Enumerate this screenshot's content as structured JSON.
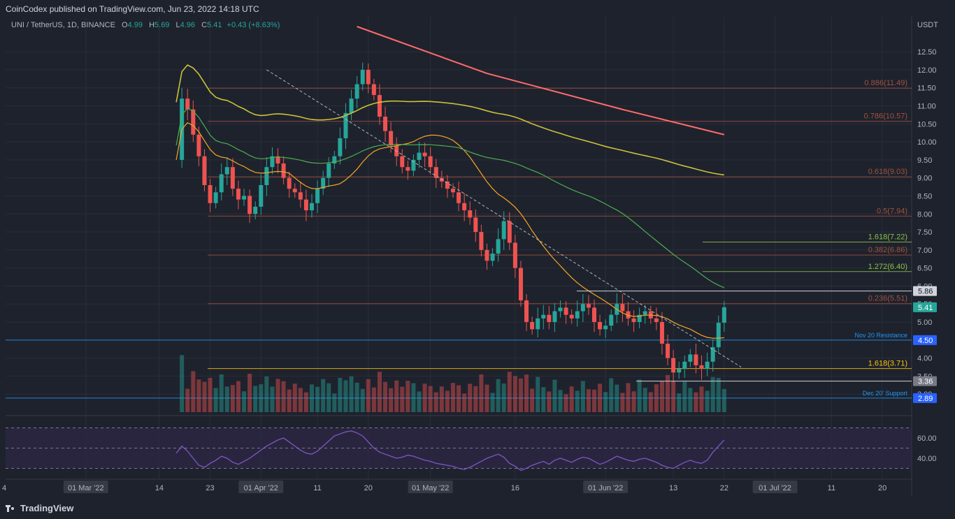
{
  "header": {
    "publisher_line": "CoinCodex published on TradingView.com, Jun 23, 2022 14:18 UTC",
    "symbol_line": "UNI / TetherUS, 1D, BINANCE",
    "ohlc": {
      "open": "4.99",
      "high": "5.69",
      "low": "4.96",
      "close": "5.41",
      "change": "+0.43 (+8.63%)"
    },
    "ohlc_labels": {
      "open": "O",
      "high": "H",
      "low": "L",
      "close": "C"
    }
  },
  "footer": {
    "brand": "TradingView"
  },
  "colors": {
    "background": "#1e222d",
    "grid": "#2a2e39",
    "up": "#26a69a",
    "down": "#ef5350",
    "fib": "#a0523d",
    "fib_ext": "#8bc34a",
    "support_blue": "#2196f3",
    "fib_level": "#ffc107",
    "ma_yellow": "#c9c23a",
    "ma_orange": "#f5a623",
    "ma_green": "#4caf50",
    "ma_red": "#ff6b6b",
    "rsi_line": "#7e57c2",
    "rsi_band": "#2e2747"
  },
  "chart_data": {
    "type": "candlestick",
    "currency": "USDT",
    "ylim": [
      2.5,
      13.2
    ],
    "y_ticks": [
      "12.50",
      "12.00",
      "11.50",
      "11.00",
      "10.50",
      "10.00",
      "9.50",
      "9.00",
      "8.50",
      "8.00",
      "7.50",
      "7.00",
      "6.50",
      "6.00",
      "5.50",
      "5.00",
      "4.00",
      "3.50",
      "3.00"
    ],
    "x_ticks": [
      "4",
      "01 Mar '22",
      "14",
      "23",
      "01 Apr '22",
      "11",
      "20",
      "01 May '22",
      "16",
      "01 Jun '22",
      "13",
      "22",
      "01 Jul '22",
      "11",
      "20"
    ],
    "x_tick_days": [
      -25,
      0,
      13,
      22,
      31,
      41,
      50,
      61,
      76,
      92,
      104,
      113,
      122,
      132,
      141
    ],
    "x_highlight": [
      "01 Mar '22",
      "01 Apr '22",
      "01 May '22",
      "01 Jun '22",
      "01 Jul '22"
    ],
    "date_axis_origin": "2022-03-01",
    "last_candle_day": 113,
    "candles": [
      [
        4.99,
        5.69,
        4.96,
        5.41
      ]
    ],
    "closes_series": [
      9.5,
      11.2,
      10.9,
      10.2,
      9.6,
      8.8,
      8.3,
      8.6,
      9.1,
      9.3,
      8.7,
      8.4,
      8.5,
      8.0,
      8.2,
      8.8,
      9.3,
      9.6,
      9.4,
      9.0,
      8.7,
      8.6,
      8.4,
      8.1,
      8.3,
      8.7,
      9.0,
      9.4,
      9.6,
      10.1,
      10.8,
      11.2,
      11.6,
      12.0,
      11.6,
      11.3,
      10.7,
      10.3,
      9.9,
      9.6,
      9.3,
      9.2,
      9.5,
      9.7,
      9.6,
      9.3,
      9.0,
      8.9,
      8.7,
      8.6,
      8.3,
      8.1,
      7.9,
      7.5,
      7.0,
      6.7,
      6.9,
      7.3,
      7.8,
      7.2,
      6.5,
      5.6,
      5.0,
      4.8,
      5.1,
      5.2,
      5.0,
      5.3,
      5.4,
      5.2,
      5.1,
      5.3,
      5.5,
      5.4,
      5.0,
      4.8,
      4.9,
      5.2,
      5.5,
      5.3,
      5.1,
      5.0,
      5.2,
      5.3,
      5.1,
      5.0,
      4.4,
      4.0,
      3.6,
      3.7,
      3.9,
      4.1,
      3.8,
      3.7,
      3.9,
      4.3,
      4.98,
      5.41
    ],
    "horizontal_levels": [
      {
        "label": "0.886(11.49)",
        "value": 11.49,
        "kind": "fib"
      },
      {
        "label": "0.786(10.57)",
        "value": 10.57,
        "kind": "fib"
      },
      {
        "label": "0.618(9.03)",
        "value": 9.03,
        "kind": "fib"
      },
      {
        "label": "0.5(7.94)",
        "value": 7.94,
        "kind": "fib"
      },
      {
        "label": "1.618(7.22)",
        "value": 7.22,
        "kind": "fib_ext"
      },
      {
        "label": "0.382(6.86)",
        "value": 6.86,
        "kind": "fib"
      },
      {
        "label": "1.272(6.40)",
        "value": 6.4,
        "kind": "fib_ext"
      },
      {
        "label": "0.236(5.51)",
        "value": 5.51,
        "kind": "fib"
      },
      {
        "label": "Nov 20 Resistance",
        "value": 4.5,
        "kind": "support_blue"
      },
      {
        "label": "1.618(3.71)",
        "value": 3.71,
        "kind": "fib_level"
      },
      {
        "label": "Dec 20' Support",
        "value": 2.89,
        "kind": "support_blue"
      }
    ],
    "price_tags": [
      {
        "label": "5.86",
        "value": 5.86,
        "style": "white"
      },
      {
        "label": "5.41",
        "value": 5.41,
        "style": "green"
      },
      {
        "label": "4.50",
        "value": 4.5,
        "style": "blue"
      },
      {
        "label": "3.36",
        "value": 3.36,
        "style": "grey"
      },
      {
        "label": "2.89",
        "value": 2.89,
        "style": "blue"
      }
    ],
    "rsi": {
      "ylim": [
        20,
        80
      ],
      "y_ticks": [
        "60.00",
        "40.00"
      ],
      "upper_band": 70,
      "mid_band": 50,
      "lower_band": 30,
      "values": [
        45,
        52,
        47,
        40,
        33,
        31,
        35,
        38,
        42,
        40,
        36,
        34,
        37,
        40,
        44,
        48,
        52,
        55,
        58,
        60,
        56,
        52,
        48,
        45,
        44,
        47,
        52,
        57,
        62,
        64,
        66,
        67,
        65,
        62,
        56,
        50,
        46,
        44,
        42,
        40,
        41,
        43,
        42,
        40,
        38,
        37,
        35,
        34,
        33,
        32,
        30,
        29,
        31,
        34,
        37,
        40,
        42,
        44,
        41,
        35,
        32,
        28,
        30,
        33,
        35,
        37,
        34,
        38,
        40,
        38,
        36,
        39,
        41,
        40,
        37,
        34,
        36,
        39,
        42,
        40,
        38,
        37,
        39,
        40,
        38,
        36,
        33,
        31,
        30,
        33,
        36,
        38,
        36,
        35,
        38,
        46,
        52,
        58
      ]
    }
  }
}
